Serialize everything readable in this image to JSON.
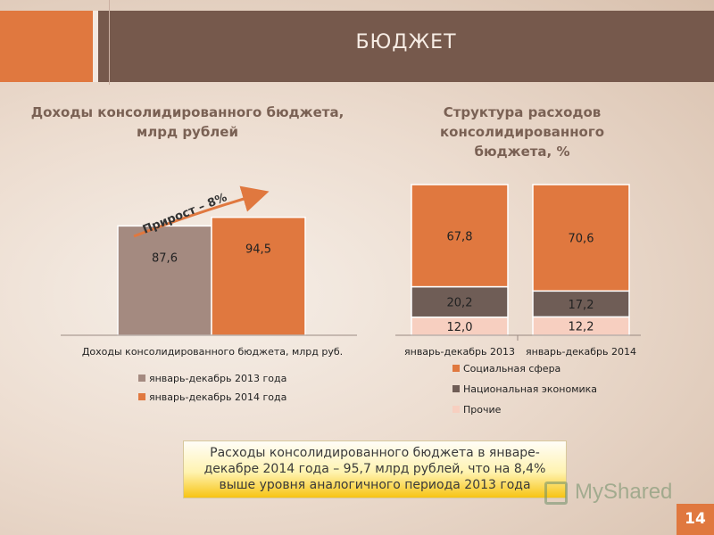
{
  "header": {
    "title": "БЮДЖЕТ"
  },
  "left_chart": {
    "title_line1": "Доходы консолидированного бюджета,",
    "title_line2": "млрд рублей",
    "growth_label": "Прирост – 8%"
  },
  "right_chart": {
    "title_line1": "Структура расходов консолидированного",
    "title_line2": "бюджета, %"
  },
  "note": {
    "line1": "Расходы консолидированного бюджета в январе-",
    "line2": "декабре 2014 года – 95,7 млрд рублей, что на 8,4%",
    "line3": "выше уровня аналогичного периода 2013 года"
  },
  "page_number": "14",
  "watermark": "MyShared",
  "chart_data": [
    {
      "type": "bar",
      "categories": [
        "Доходы консолидированного бюджета, млрд руб."
      ],
      "series": [
        {
          "name": "январь-декабрь 2013 года",
          "values": [
            87.6
          ],
          "labels": [
            "87,6"
          ],
          "color": "#a48a80"
        },
        {
          "name": "январь-декабрь 2014 года",
          "values": [
            94.5
          ],
          "labels": [
            "94,5"
          ],
          "color": "#e0783f"
        }
      ],
      "legend_position": "bottom"
    },
    {
      "type": "bar",
      "stacked": true,
      "categories": [
        "январь-декабрь 2013",
        "январь-декабрь 2014"
      ],
      "series": [
        {
          "name": "Прочие",
          "values": [
            12.0,
            12.2
          ],
          "labels": [
            "12,0",
            "12,2"
          ],
          "color": "#f7cfc0"
        },
        {
          "name": "Национальная экономика",
          "values": [
            20.2,
            17.2
          ],
          "labels": [
            "20,2",
            "17,2"
          ],
          "color": "#6f5d56"
        },
        {
          "name": "Социальная сфера",
          "values": [
            67.8,
            70.6
          ],
          "labels": [
            "67,8",
            "70,6"
          ],
          "color": "#e0783f"
        }
      ],
      "legend_order": [
        "Социальная сфера",
        "Национальная экономика",
        "Прочие"
      ],
      "legend_position": "bottom"
    }
  ]
}
